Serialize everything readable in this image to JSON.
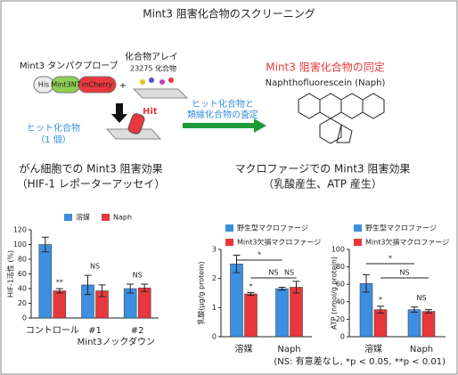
{
  "diagram": {
    "title": "Mint3 阻害化合物のスクリーニング",
    "probe_label": "Mint3 タンパクプローブ",
    "probe_parts": [
      "His",
      "Mint3NT",
      "mCherry"
    ],
    "plus": "+",
    "array_label": "化合物アレイ",
    "array_count": "23275 化合物",
    "hit": "Hit",
    "hit_label": "ヒット化合物",
    "hit_count": "（1 個）",
    "step_label": [
      "ヒット化合物と",
      "類縁化合物の査定"
    ],
    "result_label": "Mint3 阻害化合物の同定",
    "compound_name": "Naphthofluorescein (Naph)",
    "left_heading": [
      "がん細胞での Mint3 阻害効果",
      "（HIF-1 レポーターアッセイ）"
    ],
    "right_heading": [
      "マクロファージでの Mint3 阻害効果",
      "（乳酸産生、ATP 産生）"
    ],
    "footnote": "(NS: 有意差なし, *p < 0.05, **p < 0.01)"
  },
  "chart_data": [
    {
      "type": "bar",
      "y_label": "HIF-1活性 (%)",
      "categories": [
        "コントロール",
        "#1",
        "#2"
      ],
      "group_label": "Mint3ノックダウン",
      "series": [
        {
          "name": "溶媒",
          "color": "#3d8fe0",
          "values": [
            100,
            45,
            40
          ],
          "errors": [
            10,
            13,
            6
          ]
        },
        {
          "name": "Naph",
          "color": "#e8383d",
          "values": [
            37,
            37,
            41
          ],
          "errors": [
            3,
            8,
            5
          ]
        }
      ],
      "ylim": [
        0,
        120
      ],
      "yticks": [
        0,
        20,
        40,
        60,
        80,
        100,
        120
      ],
      "annotations": [
        "**",
        "NS",
        "NS"
      ]
    },
    {
      "type": "bar",
      "y_label": "乳酸(μg/g protein)",
      "categories": [
        "溶媒",
        "Naph"
      ],
      "series": [
        {
          "name": "野生型マクロファージ",
          "color": "#3d8fe0",
          "values": [
            2.5,
            1.65
          ],
          "errors": [
            0.3,
            0.05
          ]
        },
        {
          "name": "Mint3欠損マクロファージ",
          "color": "#e8383d",
          "values": [
            1.47,
            1.7
          ],
          "errors": [
            0.05,
            0.2
          ]
        }
      ],
      "ylim": [
        0,
        3
      ],
      "yticks": [
        0,
        1,
        2,
        3
      ],
      "annotations": [
        "*",
        "*",
        "NS",
        "NS"
      ]
    },
    {
      "type": "bar",
      "y_label": "ATP (nmol/g protein)",
      "categories": [
        "溶媒",
        "Naph"
      ],
      "series": [
        {
          "name": "野生型マクロファージ",
          "color": "#3d8fe0",
          "values": [
            61,
            31
          ],
          "errors": [
            10,
            3
          ]
        },
        {
          "name": "Mint3欠損マクロファージ",
          "color": "#e8383d",
          "values": [
            31,
            29
          ],
          "errors": [
            4,
            2
          ]
        }
      ],
      "ylim": [
        0,
        100
      ],
      "yticks": [
        0,
        20,
        40,
        60,
        80,
        100
      ],
      "annotations": [
        "*",
        "*",
        "NS",
        "NS"
      ]
    }
  ]
}
